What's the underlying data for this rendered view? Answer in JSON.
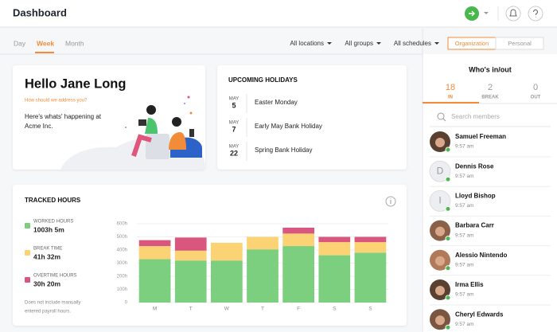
{
  "header": {
    "title": "Dashboard"
  },
  "tabs": [
    "Day",
    "Week",
    "Month"
  ],
  "filters": [
    "All locations",
    "All groups",
    "All schedules"
  ],
  "toggle": [
    "Organization",
    "Personal"
  ],
  "greeting": {
    "title": "Hello Jane Long",
    "link": "How should we address you?",
    "text": [
      "Here's whats' happening at",
      "Acme Inc."
    ]
  },
  "holidays": {
    "title": "UPCOMING HOLIDAYS",
    "items": [
      {
        "month": "MAY",
        "day": "5",
        "name": "Easter Monday"
      },
      {
        "month": "MAY",
        "day": "7",
        "name": "Early May Bank Holiday"
      },
      {
        "month": "MAY",
        "day": "22",
        "name": "Spring Bank Holiday"
      }
    ]
  },
  "chart_data": {
    "type": "bar",
    "stacked": true,
    "title": "TRACKED HOURS",
    "categories": [
      "M",
      "T",
      "W",
      "T",
      "F",
      "S",
      "S"
    ],
    "series": [
      {
        "name": "WORKED HOURS",
        "total": "1003h 5m",
        "color": "#7ccf7f",
        "values": [
          330,
          320,
          320,
          405,
          430,
          360,
          380
        ]
      },
      {
        "name": "BREAK TIME",
        "total": "41h 32m",
        "color": "#fbd274",
        "values": [
          100,
          75,
          135,
          95,
          95,
          100,
          80
        ]
      },
      {
        "name": "OVERTIME HOURS",
        "total": "30h 20m",
        "color": "#d9577f",
        "values": [
          45,
          100,
          0,
          0,
          45,
          40,
          40
        ]
      }
    ],
    "ylim": [
      0,
      600
    ],
    "yticks": [
      0,
      {
        "value": 100,
        "label": "100h"
      },
      {
        "value": 200,
        "label": "200h"
      },
      {
        "value": 300,
        "label": "300h"
      },
      {
        "value": 400,
        "label": "400h"
      },
      {
        "value": 500,
        "label": "500h"
      },
      {
        "value": 600,
        "label": "600h"
      }
    ],
    "grid": true,
    "note": [
      "Does not include manually",
      "entered payroll hours."
    ]
  },
  "who": {
    "title": "Who's in/out",
    "tabs": [
      {
        "count": 18,
        "label": "IN"
      },
      {
        "count": 2,
        "label": "BREAK"
      },
      {
        "count": 0,
        "label": "OUT"
      }
    ],
    "search": "Search members",
    "members": [
      {
        "name": "Samuel Freeman",
        "time": "9:57 am"
      },
      {
        "name": "Dennis Rose",
        "time": "9:57 am",
        "initial": "D"
      },
      {
        "name": "Lloyd Bishop",
        "time": "9:57 am",
        "initial": "I"
      },
      {
        "name": "Barbara Carr",
        "time": "9:57 am"
      },
      {
        "name": "Alessio Nintendo",
        "time": "9:57 am"
      },
      {
        "name": "Irma Ellis",
        "time": "9:57 am"
      },
      {
        "name": "Cheryl Edwards",
        "time": "9:57 am"
      }
    ]
  }
}
